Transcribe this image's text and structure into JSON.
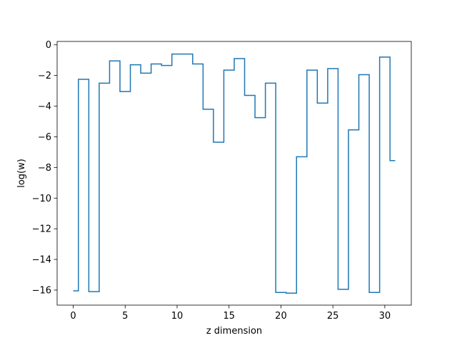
{
  "chart_data": {
    "type": "line",
    "drawstyle": "steps-mid",
    "title": "",
    "xlabel": "z dimension",
    "ylabel": "log(w)",
    "xlim": [
      -1.55,
      32.55
    ],
    "ylim": [
      -16.98,
      0.22
    ],
    "xticks": [
      0,
      5,
      10,
      15,
      20,
      25,
      30
    ],
    "yticks": [
      0,
      -2,
      -4,
      -6,
      -8,
      -10,
      -12,
      -14,
      -16
    ],
    "xtick_labels": [
      "0",
      "5",
      "10",
      "15",
      "20",
      "25",
      "30"
    ],
    "ytick_labels": [
      "0",
      "−2",
      "−4",
      "−6",
      "−8",
      "−10",
      "−12",
      "−14",
      "−16"
    ],
    "grid": false,
    "legend": "none",
    "line_color": "#1f77b4",
    "series": [
      {
        "x": [
          0,
          1,
          2,
          3,
          4,
          5,
          6,
          7,
          8,
          9,
          10,
          11,
          12,
          13,
          14,
          15,
          16,
          17,
          18,
          19,
          20,
          21,
          22,
          23,
          24,
          25,
          26,
          27,
          28,
          29,
          30,
          31
        ],
        "values": [
          -16.05,
          -2.25,
          -16.1,
          -2.5,
          -1.05,
          -3.05,
          -1.3,
          -1.85,
          -1.25,
          -1.35,
          -0.6,
          -0.6,
          -1.25,
          -4.2,
          -6.35,
          -1.65,
          -0.9,
          -3.3,
          -4.75,
          -2.5,
          -16.15,
          -16.2,
          -7.3,
          -1.65,
          -3.8,
          -1.55,
          -15.95,
          -5.55,
          -1.95,
          -16.15,
          -0.8,
          -7.55
        ]
      }
    ]
  }
}
